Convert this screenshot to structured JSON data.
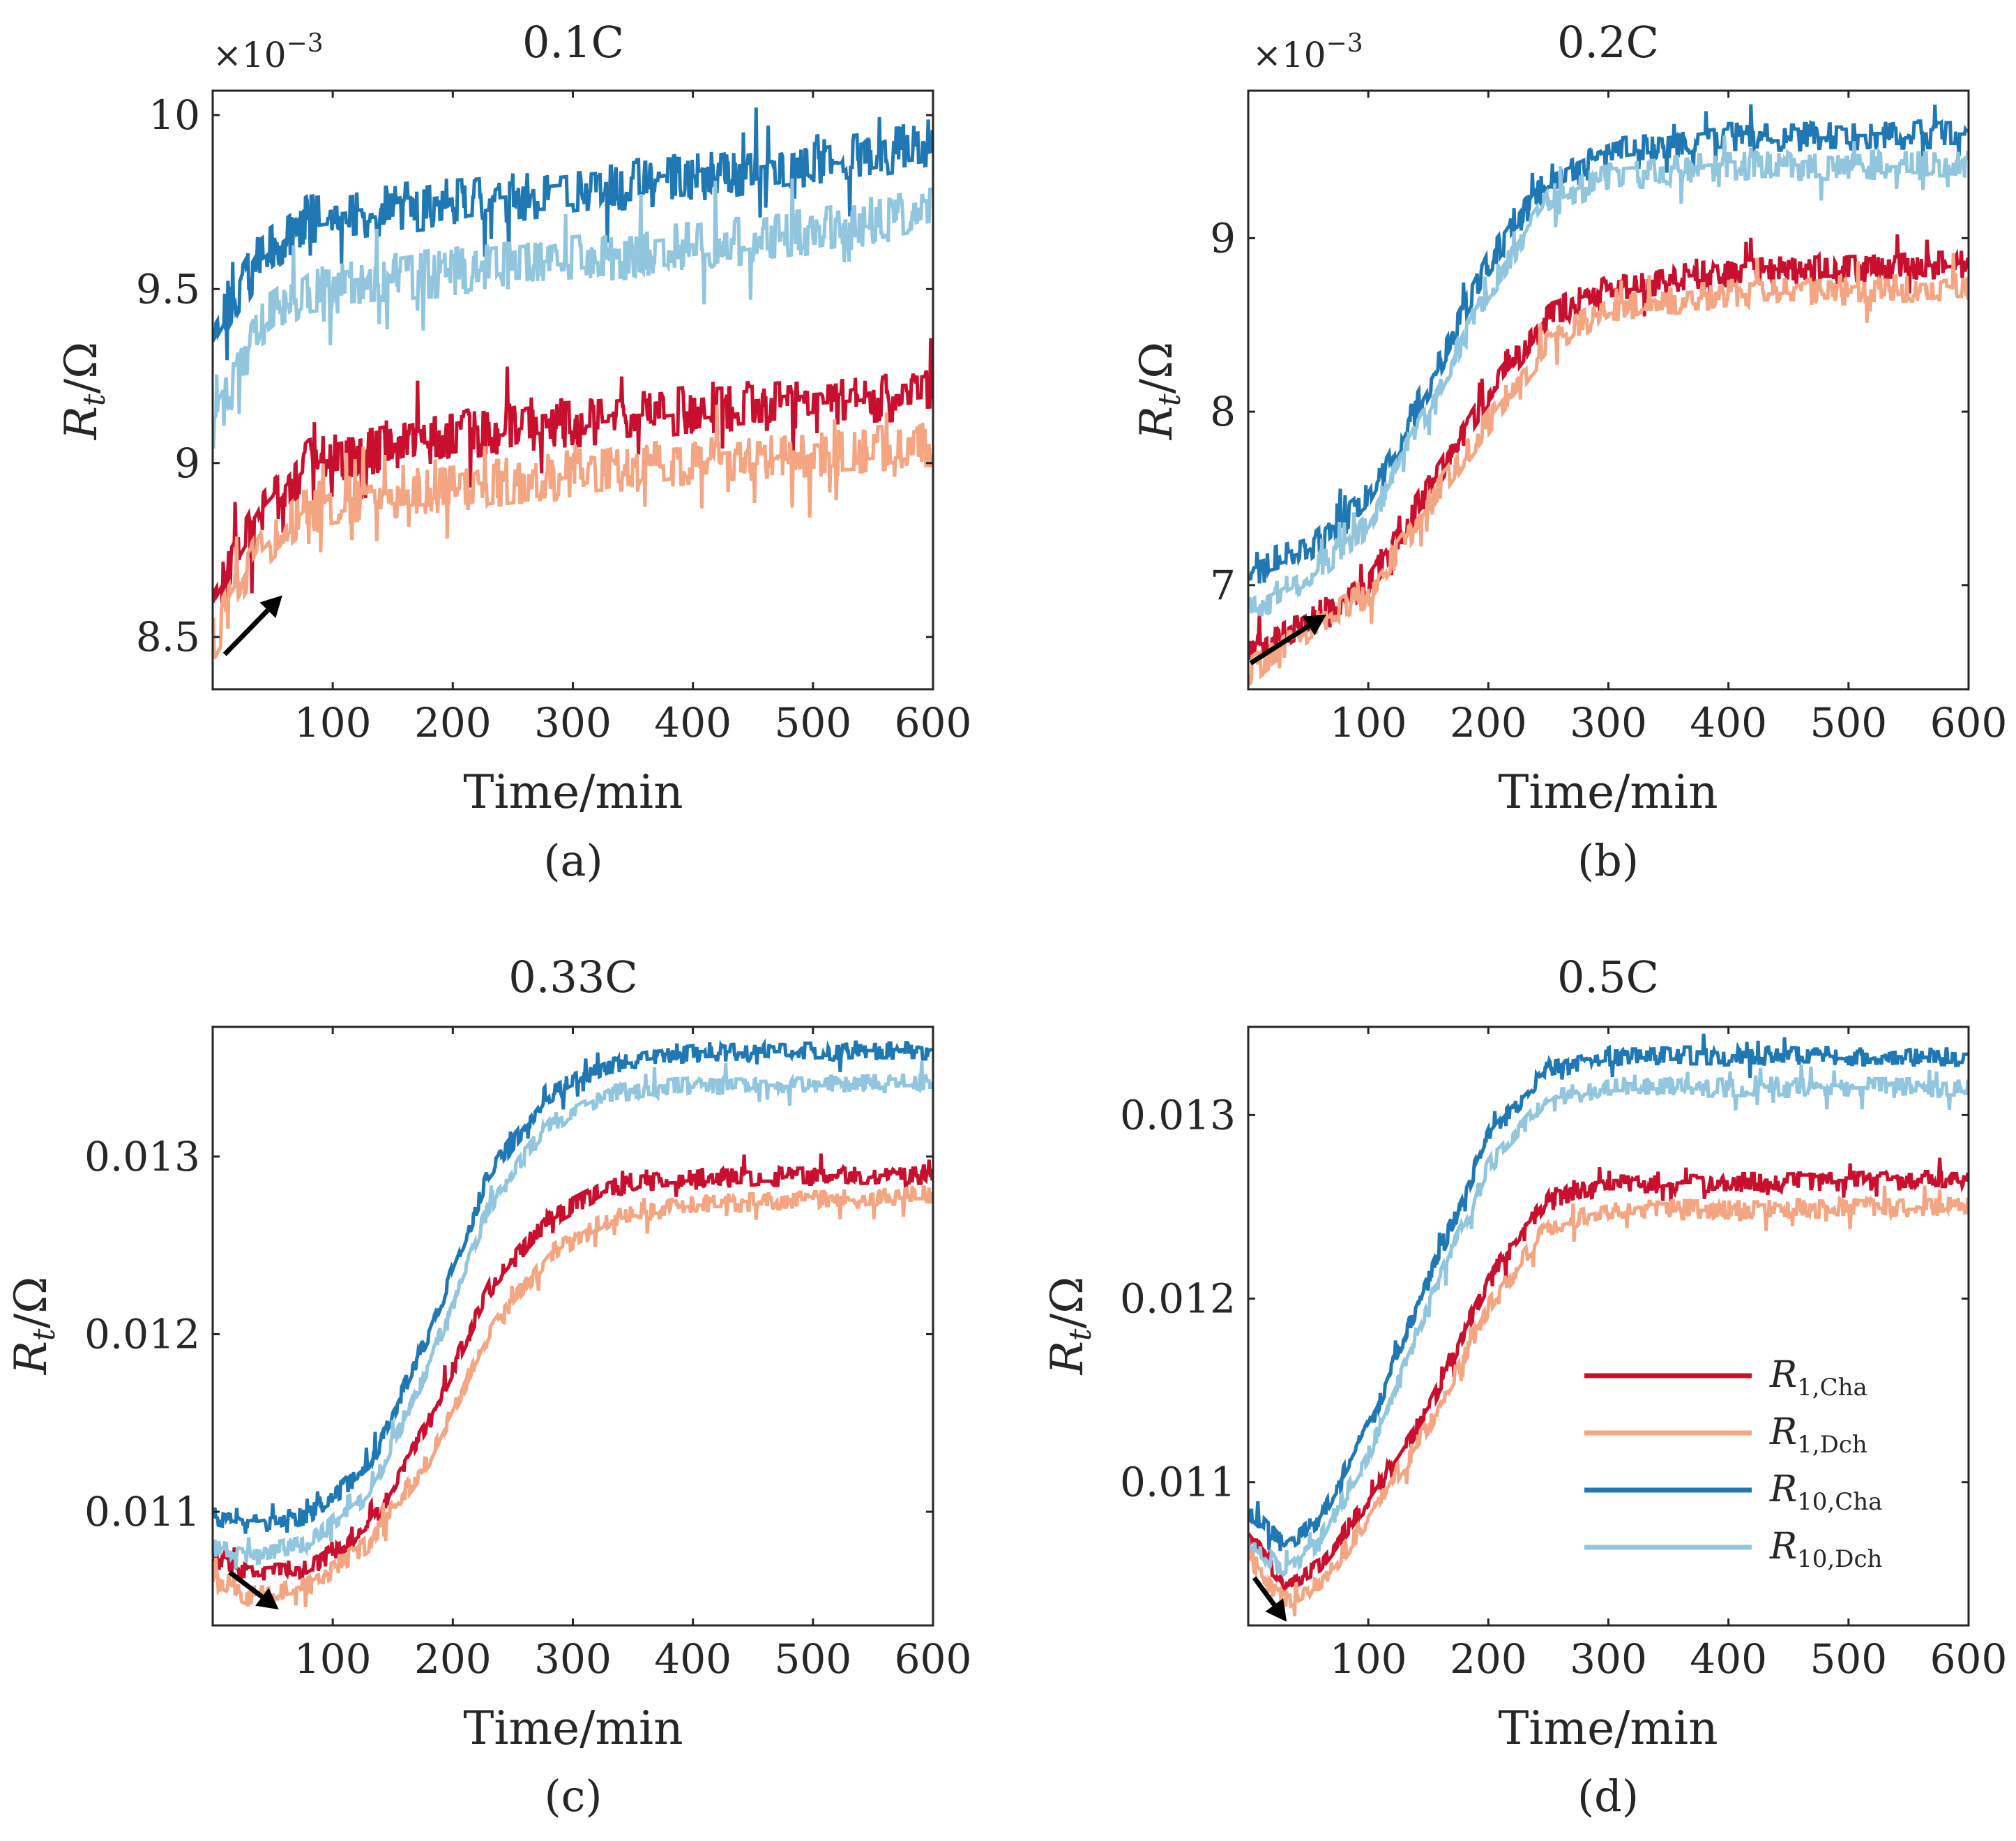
{
  "figure": {
    "ylabel_main": "R",
    "ylabel_sub": "t",
    "ylabel_tail": "/Ω",
    "xlabel": "Time/min",
    "exponent_base": "×10",
    "exponent_power": "−3"
  },
  "colors": {
    "R1_Cha": "#c8102e",
    "R1_Dch": "#f4a582",
    "R10_Cha": "#1f78b4",
    "R10_Dch": "#92c5de",
    "axis": "#262626",
    "arrow": "#000000"
  },
  "legend": {
    "placement": "lower-right of panel (d)",
    "entries": [
      {
        "main": "R",
        "sub": "1,Cha",
        "series": "R1_Cha"
      },
      {
        "main": "R",
        "sub": "1,Dch",
        "series": "R1_Dch"
      },
      {
        "main": "R",
        "sub": "10,Cha",
        "series": "R10_Cha"
      },
      {
        "main": "R",
        "sub": "10,Dch",
        "series": "R10_Dch"
      }
    ]
  },
  "chart_data": [
    {
      "type": "line",
      "panel_label": "(a)",
      "title": "0.1C",
      "xlabel": "Time/min",
      "ylabel": "Rt/Ω",
      "y_scale_note": "×10^−3",
      "xlim": [
        0,
        600
      ],
      "ylim": [
        8.35,
        10.07
      ],
      "xticks": [
        100,
        200,
        300,
        400,
        500,
        600
      ],
      "yticks": [
        8.5,
        9,
        9.5,
        10
      ],
      "ytick_labels": [
        "8.5",
        "9",
        "9.5",
        "10"
      ],
      "arrow": {
        "from": [
          10,
          8.45
        ],
        "to": [
          58,
          8.62
        ],
        "meaning": "time direction"
      },
      "series": [
        {
          "name": "R1,Cha",
          "color_key": "R1_Cha",
          "anchors": [
            [
              0,
              8.6
            ],
            [
              40,
              8.85
            ],
            [
              80,
              9.0
            ],
            [
              200,
              9.08
            ],
            [
              400,
              9.15
            ],
            [
              600,
              9.2
            ]
          ],
          "noise": 0.07
        },
        {
          "name": "R1,Dch",
          "color_key": "R1_Dch",
          "anchors": [
            [
              0,
              8.5
            ],
            [
              40,
              8.75
            ],
            [
              80,
              8.88
            ],
            [
              200,
              8.93
            ],
            [
              400,
              9.0
            ],
            [
              600,
              9.05
            ]
          ],
          "noise": 0.07
        },
        {
          "name": "R10,Cha",
          "color_key": "R10_Cha",
          "anchors": [
            [
              0,
              9.35
            ],
            [
              40,
              9.6
            ],
            [
              80,
              9.7
            ],
            [
              200,
              9.75
            ],
            [
              400,
              9.82
            ],
            [
              600,
              9.92
            ]
          ],
          "noise": 0.07
        },
        {
          "name": "R10,Dch",
          "color_key": "R10_Dch",
          "anchors": [
            [
              0,
              9.1
            ],
            [
              40,
              9.4
            ],
            [
              80,
              9.5
            ],
            [
              200,
              9.55
            ],
            [
              400,
              9.62
            ],
            [
              600,
              9.72
            ]
          ],
          "noise": 0.07
        }
      ]
    },
    {
      "type": "line",
      "panel_label": "(b)",
      "title": "0.2C",
      "xlabel": "Time/min",
      "ylabel": "Rt/Ω",
      "y_scale_note": "×10^−3",
      "xlim": [
        0,
        600
      ],
      "ylim": [
        6.4,
        9.85
      ],
      "xticks": [
        100,
        200,
        300,
        400,
        500,
        600
      ],
      "yticks": [
        7,
        8,
        9
      ],
      "ytick_labels": [
        "7",
        "8",
        "9"
      ],
      "arrow": {
        "from": [
          2,
          6.55
        ],
        "to": [
          65,
          6.83
        ],
        "meaning": "time direction"
      },
      "series": [
        {
          "name": "R1,Cha",
          "color_key": "R1_Cha",
          "anchors": [
            [
              0,
              6.6
            ],
            [
              50,
              6.8
            ],
            [
              100,
              7.0
            ],
            [
              150,
              7.55
            ],
            [
              200,
              8.1
            ],
            [
              250,
              8.55
            ],
            [
              300,
              8.72
            ],
            [
              400,
              8.8
            ],
            [
              600,
              8.85
            ]
          ],
          "noise": 0.08
        },
        {
          "name": "R1,Dch",
          "color_key": "R1_Dch",
          "anchors": [
            [
              0,
              6.5
            ],
            [
              50,
              6.75
            ],
            [
              100,
              6.95
            ],
            [
              150,
              7.45
            ],
            [
              200,
              7.95
            ],
            [
              250,
              8.4
            ],
            [
              300,
              8.6
            ],
            [
              400,
              8.68
            ],
            [
              600,
              8.72
            ]
          ],
          "noise": 0.08
        },
        {
          "name": "R10,Cha",
          "color_key": "R10_Cha",
          "anchors": [
            [
              0,
              7.1
            ],
            [
              50,
              7.2
            ],
            [
              100,
              7.5
            ],
            [
              150,
              8.15
            ],
            [
              200,
              8.85
            ],
            [
              250,
              9.35
            ],
            [
              300,
              9.5
            ],
            [
              400,
              9.58
            ],
            [
              600,
              9.6
            ]
          ],
          "noise": 0.08
        },
        {
          "name": "R10,Dch",
          "color_key": "R10_Dch",
          "anchors": [
            [
              0,
              6.85
            ],
            [
              50,
              7.05
            ],
            [
              100,
              7.35
            ],
            [
              150,
              8.0
            ],
            [
              200,
              8.7
            ],
            [
              250,
              9.2
            ],
            [
              300,
              9.35
            ],
            [
              400,
              9.42
            ],
            [
              600,
              9.42
            ]
          ],
          "noise": 0.08
        }
      ]
    },
    {
      "type": "line",
      "panel_label": "(c)",
      "title": "0.33C",
      "xlabel": "Time/min",
      "ylabel": "Rt/Ω",
      "xlim": [
        0,
        600
      ],
      "ylim": [
        0.01036,
        0.01373
      ],
      "xticks": [
        100,
        200,
        300,
        400,
        500,
        600
      ],
      "yticks": [
        0.011,
        0.012,
        0.013
      ],
      "ytick_labels": [
        "0.011",
        "0.012",
        "0.013"
      ],
      "arrow": {
        "from": [
          14,
          0.01066
        ],
        "to": [
          55,
          0.01045
        ],
        "meaning": "time direction"
      },
      "series": [
        {
          "name": "R1,Cha",
          "color_key": "R1_Cha",
          "anchors": [
            [
              0,
              0.01075
            ],
            [
              30,
              0.01065
            ],
            [
              80,
              0.01068
            ],
            [
              130,
              0.0109
            ],
            [
              180,
              0.0115
            ],
            [
              230,
              0.01225
            ],
            [
              280,
              0.01265
            ],
            [
              330,
              0.01283
            ],
            [
              400,
              0.01288
            ],
            [
              600,
              0.0129
            ]
          ],
          "noise": 5e-05
        },
        {
          "name": "R1,Dch",
          "color_key": "R1_Dch",
          "anchors": [
            [
              0,
              0.01062
            ],
            [
              30,
              0.01052
            ],
            [
              80,
              0.01058
            ],
            [
              130,
              0.01082
            ],
            [
              180,
              0.0113
            ],
            [
              230,
              0.012
            ],
            [
              280,
              0.01245
            ],
            [
              330,
              0.01265
            ],
            [
              400,
              0.01273
            ],
            [
              600,
              0.01278
            ]
          ],
          "noise": 5e-05
        },
        {
          "name": "R10,Cha",
          "color_key": "R10_Cha",
          "anchors": [
            [
              0,
              0.01098
            ],
            [
              30,
              0.01092
            ],
            [
              80,
              0.01098
            ],
            [
              130,
              0.01125
            ],
            [
              180,
              0.012
            ],
            [
              230,
              0.0129
            ],
            [
              280,
              0.01335
            ],
            [
              330,
              0.01352
            ],
            [
              400,
              0.01358
            ],
            [
              600,
              0.0136
            ]
          ],
          "noise": 5e-05
        },
        {
          "name": "R10,Dch",
          "color_key": "R10_Dch",
          "anchors": [
            [
              0,
              0.0108
            ],
            [
              30,
              0.01075
            ],
            [
              80,
              0.01082
            ],
            [
              130,
              0.0111
            ],
            [
              180,
              0.01182
            ],
            [
              230,
              0.01272
            ],
            [
              280,
              0.01318
            ],
            [
              330,
              0.01335
            ],
            [
              400,
              0.0134
            ],
            [
              600,
              0.01342
            ]
          ],
          "noise": 5e-05
        }
      ]
    },
    {
      "type": "line",
      "panel_label": "(d)",
      "title": "0.5C",
      "xlabel": "Time/min",
      "ylabel": "Rt/Ω",
      "xlim": [
        0,
        600
      ],
      "ylim": [
        0.01022,
        0.01348
      ],
      "xticks": [
        100,
        200,
        300,
        400,
        500,
        600
      ],
      "yticks": [
        0.011,
        0.012,
        0.013
      ],
      "ytick_labels": [
        "0.011",
        "0.012",
        "0.013"
      ],
      "arrow": {
        "from": [
          5,
          0.01048
        ],
        "to": [
          32,
          0.01024
        ],
        "meaning": "time direction"
      },
      "series": [
        {
          "name": "R1,Cha",
          "color_key": "R1_Cha",
          "anchors": [
            [
              0,
              0.0107
            ],
            [
              30,
              0.01045
            ],
            [
              60,
              0.01055
            ],
            [
              100,
              0.0109
            ],
            [
              150,
              0.0114
            ],
            [
              200,
              0.0121
            ],
            [
              250,
              0.01255
            ],
            [
              300,
              0.01262
            ],
            [
              600,
              0.01265
            ]
          ],
          "noise": 5e-05
        },
        {
          "name": "R1,Dch",
          "color_key": "R1_Dch",
          "anchors": [
            [
              0,
              0.0106
            ],
            [
              30,
              0.01035
            ],
            [
              60,
              0.01045
            ],
            [
              100,
              0.0108
            ],
            [
              150,
              0.0113
            ],
            [
              200,
              0.01195
            ],
            [
              250,
              0.0124
            ],
            [
              300,
              0.01248
            ],
            [
              600,
              0.0125
            ]
          ],
          "noise": 5e-05
        },
        {
          "name": "R10,Cha",
          "color_key": "R10_Cha",
          "anchors": [
            [
              0,
              0.01085
            ],
            [
              30,
              0.01065
            ],
            [
              60,
              0.0108
            ],
            [
              100,
              0.0113
            ],
            [
              150,
              0.0121
            ],
            [
              200,
              0.01288
            ],
            [
              250,
              0.01325
            ],
            [
              300,
              0.01332
            ],
            [
              600,
              0.01332
            ]
          ],
          "noise": 5e-05
        },
        {
          "name": "R10,Dch",
          "color_key": "R10_Dch",
          "anchors": [
            [
              0,
              0.0107
            ],
            [
              30,
              0.0105
            ],
            [
              60,
              0.01068
            ],
            [
              100,
              0.01115
            ],
            [
              150,
              0.01195
            ],
            [
              200,
              0.01272
            ],
            [
              250,
              0.0131
            ],
            [
              300,
              0.01315
            ],
            [
              600,
              0.01315
            ]
          ],
          "noise": 5e-05
        }
      ]
    }
  ]
}
